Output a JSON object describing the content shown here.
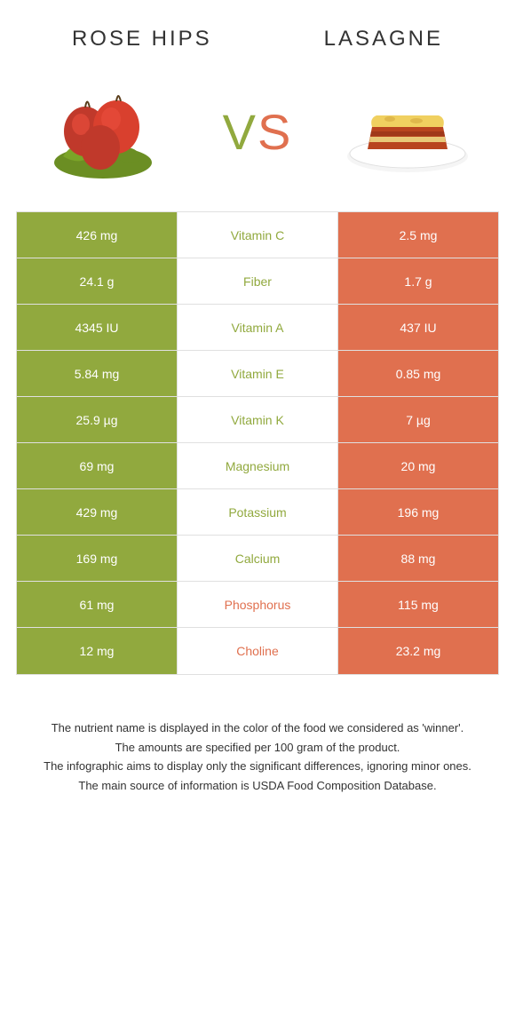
{
  "header": {
    "left_title": "ROSE HIPS",
    "right_title": "LASAGNE"
  },
  "vs": {
    "v": "V",
    "s": "S"
  },
  "colors": {
    "left_win": "#91a93e",
    "right_win": "#e0704f",
    "plain_bg": "#ffffff",
    "text_on_color": "#ffffff",
    "text_plain": "#333333"
  },
  "rows": [
    {
      "nutrient": "Vitamin C",
      "left": "426 mg",
      "right": "2.5 mg",
      "winner": "left"
    },
    {
      "nutrient": "Fiber",
      "left": "24.1 g",
      "right": "1.7 g",
      "winner": "left"
    },
    {
      "nutrient": "Vitamin A",
      "left": "4345 IU",
      "right": "437 IU",
      "winner": "left"
    },
    {
      "nutrient": "Vitamin E",
      "left": "5.84 mg",
      "right": "0.85 mg",
      "winner": "left"
    },
    {
      "nutrient": "Vitamin K",
      "left": "25.9 µg",
      "right": "7 µg",
      "winner": "left"
    },
    {
      "nutrient": "Magnesium",
      "left": "69 mg",
      "right": "20 mg",
      "winner": "left"
    },
    {
      "nutrient": "Potassium",
      "left": "429 mg",
      "right": "196 mg",
      "winner": "left"
    },
    {
      "nutrient": "Calcium",
      "left": "169 mg",
      "right": "88 mg",
      "winner": "left"
    },
    {
      "nutrient": "Phosphorus",
      "left": "61 mg",
      "right": "115 mg",
      "winner": "right"
    },
    {
      "nutrient": "Choline",
      "left": "12 mg",
      "right": "23.2 mg",
      "winner": "right"
    }
  ],
  "footnotes": {
    "l1": "The nutrient name is displayed in the color of the food we considered as 'winner'.",
    "l2": "The amounts are specified per 100 gram of the product.",
    "l3": "The infographic aims to display only the significant differences, ignoring minor ones.",
    "l4": "The main source of information is USDA Food Composition Database."
  }
}
